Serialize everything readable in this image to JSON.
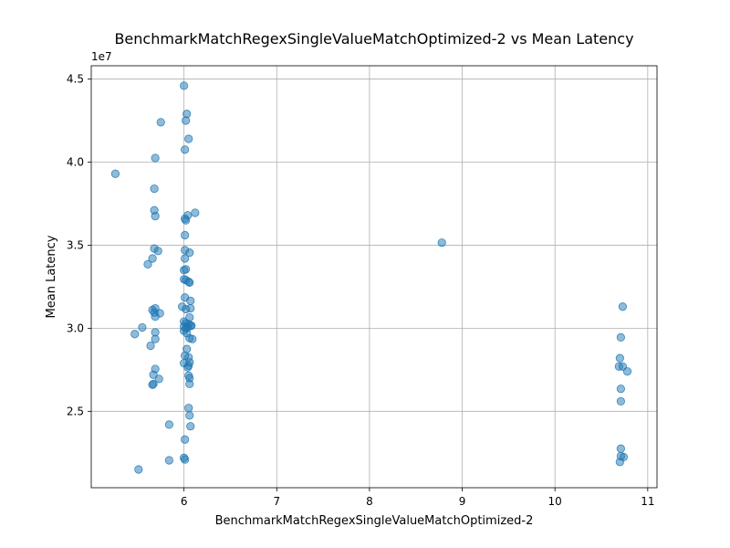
{
  "chart_data": {
    "type": "scatter",
    "title": "BenchmarkMatchRegexSingleValueMatchOptimized-2 vs Mean Latency",
    "xlabel": "BenchmarkMatchRegexSingleValueMatchOptimized-2",
    "ylabel": "Mean Latency",
    "y_offset_label": "1e7",
    "xlim": [
      5.0,
      11.1
    ],
    "ylim": [
      20400000,
      45800000
    ],
    "x_ticks": [
      6,
      7,
      8,
      9,
      10,
      11
    ],
    "x_tick_labels": [
      "6",
      "7",
      "8",
      "9",
      "10",
      "11"
    ],
    "y_ticks": [
      25000000,
      30000000,
      35000000,
      40000000,
      45000000
    ],
    "y_tick_labels": [
      "2.5",
      "3.0",
      "3.5",
      "4.0",
      "4.5"
    ],
    "grid": true,
    "marker_color": "#1f77b4",
    "marker_alpha": 0.5,
    "points": [
      [
        5.26,
        39300000
      ],
      [
        5.47,
        29650000
      ],
      [
        5.51,
        21500000
      ],
      [
        5.55,
        30050000
      ],
      [
        5.61,
        33850000
      ],
      [
        5.64,
        28950000
      ],
      [
        5.66,
        34200000
      ],
      [
        5.66,
        31100000
      ],
      [
        5.67,
        27200000
      ],
      [
        5.67,
        26650000
      ],
      [
        5.66,
        26600000
      ],
      [
        5.68,
        38400000
      ],
      [
        5.68,
        37100000
      ],
      [
        5.69,
        36750000
      ],
      [
        5.68,
        34800000
      ],
      [
        5.69,
        31200000
      ],
      [
        5.68,
        30950000
      ],
      [
        5.69,
        30700000
      ],
      [
        5.69,
        29750000
      ],
      [
        5.69,
        29350000
      ],
      [
        5.69,
        27550000
      ],
      [
        5.69,
        40250000
      ],
      [
        5.72,
        34650000
      ],
      [
        5.74,
        30900000
      ],
      [
        5.73,
        26950000
      ],
      [
        5.75,
        42400000
      ],
      [
        5.84,
        24200000
      ],
      [
        5.84,
        22050000
      ],
      [
        6.0,
        44600000
      ],
      [
        6.02,
        42500000
      ],
      [
        6.03,
        42900000
      ],
      [
        6.05,
        41400000
      ],
      [
        6.01,
        40750000
      ],
      [
        6.01,
        36600000
      ],
      [
        6.02,
        36500000
      ],
      [
        6.04,
        36800000
      ],
      [
        6.12,
        36950000
      ],
      [
        6.01,
        35600000
      ],
      [
        6.01,
        34700000
      ],
      [
        6.06,
        34550000
      ],
      [
        6.01,
        34200000
      ],
      [
        6.0,
        33500000
      ],
      [
        6.02,
        33550000
      ],
      [
        6.0,
        32950000
      ],
      [
        6.02,
        32900000
      ],
      [
        6.05,
        32800000
      ],
      [
        6.06,
        32750000
      ],
      [
        6.01,
        31850000
      ],
      [
        6.07,
        31650000
      ],
      [
        5.98,
        31300000
      ],
      [
        6.02,
        31150000
      ],
      [
        6.07,
        31200000
      ],
      [
        6.06,
        30650000
      ],
      [
        6.0,
        30400000
      ],
      [
        6.02,
        30300000
      ],
      [
        6.05,
        30250000
      ],
      [
        6.07,
        30150000
      ],
      [
        6.0,
        30100000
      ],
      [
        6.02,
        30000000
      ],
      [
        6.04,
        30050000
      ],
      [
        6.08,
        30150000
      ],
      [
        6.0,
        29850000
      ],
      [
        6.03,
        29700000
      ],
      [
        6.06,
        29400000
      ],
      [
        6.09,
        29350000
      ],
      [
        6.03,
        28750000
      ],
      [
        6.01,
        28350000
      ],
      [
        6.05,
        28250000
      ],
      [
        6.0,
        27900000
      ],
      [
        6.06,
        27950000
      ],
      [
        6.05,
        27750000
      ],
      [
        6.04,
        27650000
      ],
      [
        6.05,
        27150000
      ],
      [
        6.06,
        27000000
      ],
      [
        6.06,
        26650000
      ],
      [
        6.05,
        25200000
      ],
      [
        6.06,
        24750000
      ],
      [
        6.07,
        24100000
      ],
      [
        6.01,
        23300000
      ],
      [
        6.0,
        22200000
      ],
      [
        6.01,
        22100000
      ],
      [
        8.78,
        35150000
      ],
      [
        10.73,
        31300000
      ],
      [
        10.71,
        29450000
      ],
      [
        10.7,
        28200000
      ],
      [
        10.69,
        27700000
      ],
      [
        10.73,
        27700000
      ],
      [
        10.78,
        27400000
      ],
      [
        10.71,
        26350000
      ],
      [
        10.71,
        25600000
      ],
      [
        10.71,
        22750000
      ],
      [
        10.71,
        22300000
      ],
      [
        10.74,
        22250000
      ],
      [
        10.7,
        21950000
      ]
    ]
  }
}
